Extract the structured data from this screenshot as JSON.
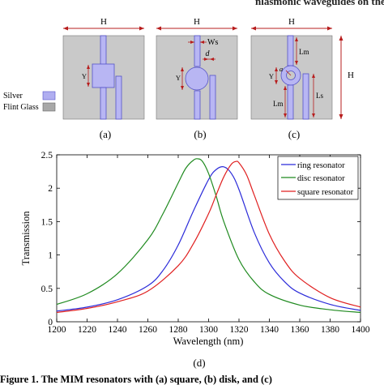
{
  "header": {
    "partial_text": "nlasmonic waveguides on the proposed design"
  },
  "panels": {
    "dim_H": "H",
    "dim_Y": "Y",
    "dim_Ws": "Ws",
    "dim_d": "d",
    "dim_Lm": "Lm",
    "dim_Ls": "Ls",
    "dim_a": "a",
    "label_a": "(a)",
    "label_b": "(b)",
    "label_c": "(c)"
  },
  "legend_materials": [
    {
      "label": "Silver",
      "color": "#b0aef0"
    },
    {
      "label": "Flint Glass",
      "color": "#a8a8a8"
    }
  ],
  "colors": {
    "substrate": "#c9c9c9",
    "silver": "#b8b6f3",
    "silver_edge": "#5553c8",
    "dimension": "#c62828"
  },
  "chart_data": {
    "type": "line",
    "xlabel": "Wavelength (nm)",
    "ylabel": "Transmission",
    "xlim": [
      1200,
      1400
    ],
    "ylim": [
      0,
      2.5
    ],
    "xticks": [
      1200,
      1220,
      1240,
      1260,
      1280,
      1300,
      1320,
      1340,
      1360,
      1380,
      1400
    ],
    "yticks": [
      0,
      0.5,
      1,
      1.5,
      2,
      2.5
    ],
    "grid": false,
    "legend_position": "top-right",
    "series": [
      {
        "name": "ring resonator",
        "color": "#2b2bd9",
        "x": [
          1200,
          1220,
          1240,
          1260,
          1270,
          1280,
          1290,
          1300,
          1305,
          1310,
          1315,
          1320,
          1330,
          1340,
          1350,
          1360,
          1380,
          1400
        ],
        "y": [
          0.16,
          0.22,
          0.33,
          0.54,
          0.77,
          1.15,
          1.66,
          2.13,
          2.28,
          2.32,
          2.22,
          1.98,
          1.34,
          0.88,
          0.6,
          0.43,
          0.26,
          0.17
        ]
      },
      {
        "name": "disc resonator",
        "color": "#1f8a1f",
        "x": [
          1200,
          1220,
          1240,
          1260,
          1270,
          1280,
          1285,
          1290,
          1293,
          1296,
          1300,
          1305,
          1310,
          1320,
          1330,
          1340,
          1360,
          1380,
          1400
        ],
        "y": [
          0.26,
          0.42,
          0.72,
          1.23,
          1.62,
          2.08,
          2.3,
          2.42,
          2.44,
          2.4,
          2.22,
          1.88,
          1.5,
          0.93,
          0.6,
          0.41,
          0.25,
          0.18,
          0.14
        ]
      },
      {
        "name": "square resonator",
        "color": "#e02020",
        "x": [
          1200,
          1220,
          1240,
          1260,
          1280,
          1290,
          1300,
          1305,
          1310,
          1315,
          1318,
          1320,
          1325,
          1330,
          1340,
          1350,
          1360,
          1380,
          1400
        ],
        "y": [
          0.14,
          0.2,
          0.3,
          0.46,
          0.84,
          1.17,
          1.62,
          1.9,
          2.17,
          2.36,
          2.4,
          2.38,
          2.2,
          1.9,
          1.31,
          0.91,
          0.65,
          0.36,
          0.22
        ]
      }
    ]
  },
  "caption_d": "(d)",
  "footer": {
    "text": "Figure 1. The MIM resonators with (a) square, (b) disk, and (c)"
  }
}
